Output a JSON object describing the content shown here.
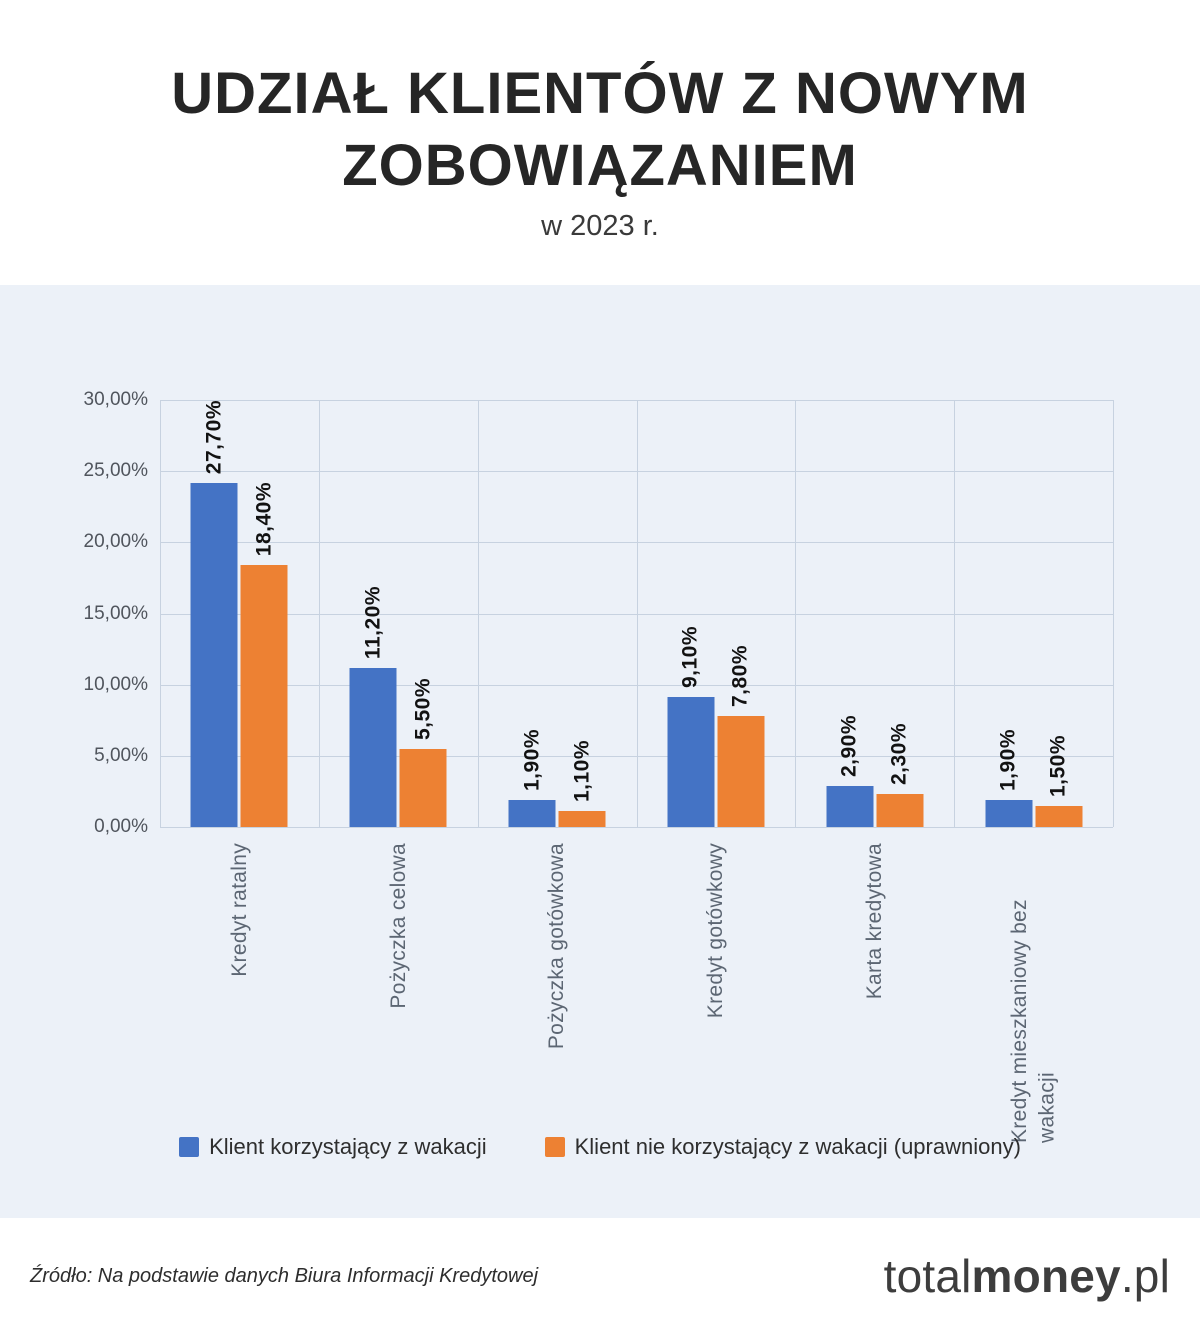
{
  "header": {
    "title_line1": "UDZIAŁ KLIENTÓW Z NOWYM",
    "title_line2": "ZOBOWIĄZANIEM",
    "subtitle": "w 2023 r."
  },
  "chart_data": {
    "type": "bar",
    "categories": [
      "Kredyt ratalny",
      "Pożyczka celowa",
      "Pożyczka gotówkowa",
      "Kredyt gotówkowy",
      "Karta kredytowa",
      "Kredyt mieszkaniowy bez wakacji"
    ],
    "series": [
      {
        "name": "Klient korzystający z wakacji",
        "color": "#4473c5",
        "values": [
          27.7,
          11.2,
          1.9,
          9.1,
          2.9,
          1.9
        ],
        "labels": [
          "27,70%",
          "11,20%",
          "1,90%",
          "9,10%",
          "2,90%",
          "1,90%"
        ]
      },
      {
        "name": "Klient nie korzystający z wakacji (uprawniony)",
        "color": "#ed8133",
        "values": [
          18.4,
          5.5,
          1.1,
          7.8,
          2.3,
          1.5
        ],
        "labels": [
          "18,40%",
          "5,50%",
          "1,10%",
          "7,80%",
          "2,30%",
          "1,50%"
        ]
      }
    ],
    "ylim": [
      0,
      30
    ],
    "ytick_step": 5,
    "yticks": [
      "30,00%",
      "25,00%",
      "20,00%",
      "15,00%",
      "10,00%",
      "5,00%",
      "0,00%"
    ],
    "grid": true,
    "legend_position": "bottom"
  },
  "footer": {
    "source_prefix": "Źródło:",
    "source_text": " Na podstawie danych Biura Informacji Kredytowej",
    "logo": {
      "part1": "total",
      "part2": "money",
      "part3": ".pl"
    }
  },
  "colors": {
    "panel_background": "#ecf1f8",
    "gridline": "#c7d2e0",
    "series_blue": "#4473c5",
    "series_orange": "#ed8133"
  }
}
